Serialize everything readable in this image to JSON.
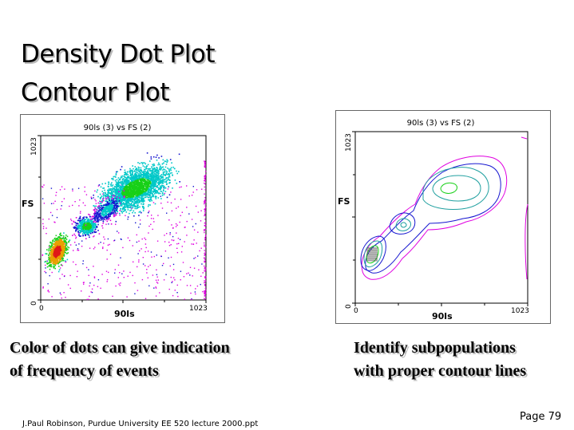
{
  "slide": {
    "title_line1": "Density Dot Plot",
    "title_line2": "Contour Plot",
    "caption_left_line1": "Color of dots can give indication",
    "caption_left_line2": "of frequency of events",
    "caption_right_line1": "Identify subpopulations",
    "caption_right_line2": "with proper contour lines",
    "footer": "J.Paul Robinson, Purdue University EE 520 lecture 2000.ppt",
    "page_number": "Page 79"
  },
  "dot_plot": {
    "title": "90ls (3) vs FS (2)",
    "ylabel": "FS",
    "xlabel": "90ls",
    "y_tick_max": "1023",
    "y_tick_min": "0",
    "x_tick_min": "0",
    "x_tick_max": "1023"
  },
  "contour_plot": {
    "title": "90ls (3) vs FS (2)",
    "ylabel": "FS",
    "xlabel": "90ls",
    "y_tick_max": "1023",
    "y_tick_min": "0",
    "x_tick_min": "0",
    "x_tick_max": "1023"
  },
  "colors": {
    "magenta": "#e000e0",
    "blue": "#1818d0",
    "cyan": "#00c8c8",
    "green": "#18d018",
    "red": "#e01818",
    "teal_contour": "#20a0a0",
    "shadow": "#bdbdbd"
  }
}
